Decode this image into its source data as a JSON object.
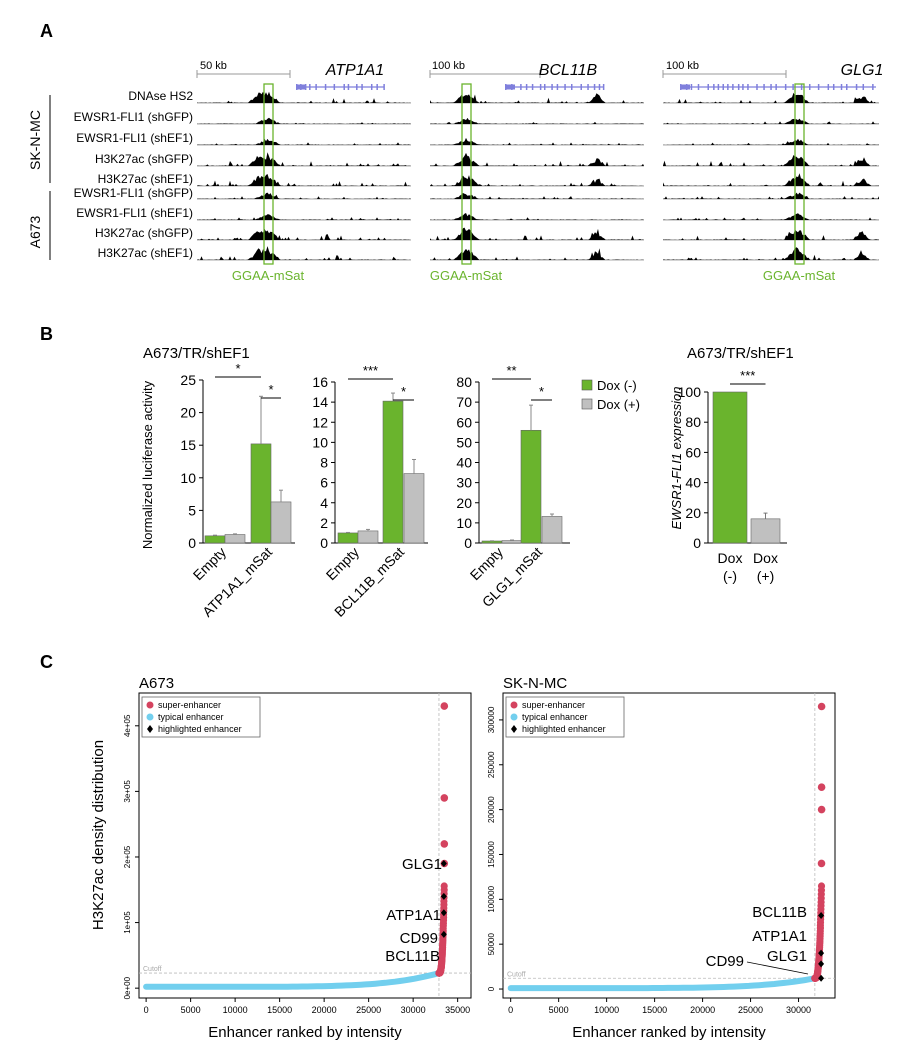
{
  "panel_labels": {
    "a": "A",
    "b": "B",
    "c": "C"
  },
  "colors": {
    "green": "#6ab42d",
    "grey": "#c0c0c0",
    "track": "#000000",
    "gene_blue": "#1f1fa0",
    "gene_model": "#7f7fdc",
    "super": "#d4435f",
    "typical": "#72cfee",
    "highlight": "#000000",
    "cutoff": "#bbbbbb"
  },
  "panelA": {
    "group_labels": [
      "SK-N-MC",
      "A673"
    ],
    "track_labels": [
      "DNAse HS2",
      "EWSR1-FLI1 (shGFP)",
      "EWSR1-FLI1 (shEF1)",
      "H3K27ac (shGFP)",
      "H3K27ac (shEF1)",
      "EWSR1-FLI1 (shGFP)",
      "EWSR1-FLI1 (shEF1)",
      "H3K27ac (shGFP)",
      "H3K27ac (shEF1)"
    ],
    "loci": [
      {
        "gene": "ATP1A1",
        "scale": "50 kb",
        "msat_label": "GGAA-mSat"
      },
      {
        "gene": "BCL11B",
        "scale": "100 kb",
        "msat_label": "GGAA-mSat"
      },
      {
        "gene": "GLG1",
        "scale": "100 kb",
        "msat_label": "GGAA-mSat"
      }
    ]
  },
  "panelB": {
    "left_title": "A673/TR/shEF1",
    "right_title": "A673/TR/shEF1",
    "ylabel": "Normalized luciferase activity",
    "right_ylabel": "EWSR1-FLI1 expression",
    "legend": [
      "Dox (-)",
      "Dox (+)"
    ]
  },
  "panelC": {
    "xlabel_left": "Enhancer ranked by intensity",
    "xlabel_right": "Enhancer ranked by intensity",
    "ylabel": "H3K27ac density distribution",
    "legend": [
      "super-enhancer",
      "typical enhancer",
      "highlighted enhancer"
    ],
    "cutoff_label": "Cutoff"
  },
  "chart_data": [
    {
      "type": "bar",
      "title": "A673/TR/shEF1",
      "ylabel": "Normalized luciferase activity",
      "categories": [
        "Empty",
        "ATP1A1_mSat"
      ],
      "ylim": [
        0,
        25
      ],
      "yticks": [
        0,
        5,
        10,
        15,
        20,
        25
      ],
      "series": [
        {
          "name": "Dox (-)",
          "values": [
            1.1,
            15.2
          ],
          "errors": [
            0.1,
            7.3
          ]
        },
        {
          "name": "Dox (+)",
          "values": [
            1.3,
            6.3
          ],
          "errors": [
            0.1,
            1.8
          ]
        }
      ],
      "significance": [
        {
          "label": "*",
          "span": "outer"
        },
        {
          "label": "*",
          "span": "inner"
        }
      ]
    },
    {
      "type": "bar",
      "title": "",
      "ylabel": "",
      "categories": [
        "Empty",
        "BCL11B_mSat"
      ],
      "ylim": [
        0,
        16
      ],
      "yticks": [
        0,
        2,
        4,
        6,
        8,
        10,
        12,
        14,
        16
      ],
      "series": [
        {
          "name": "Dox (-)",
          "values": [
            1.0,
            14.1
          ],
          "errors": [
            0.05,
            0.8
          ]
        },
        {
          "name": "Dox (+)",
          "values": [
            1.2,
            6.9
          ],
          "errors": [
            0.15,
            1.4
          ]
        }
      ],
      "significance": [
        {
          "label": "***",
          "span": "outer"
        },
        {
          "label": "*",
          "span": "inner"
        }
      ]
    },
    {
      "type": "bar",
      "title": "",
      "ylabel": "",
      "categories": [
        "Empty",
        "GLG1_mSat"
      ],
      "ylim": [
        0,
        80
      ],
      "yticks": [
        0,
        10,
        20,
        30,
        40,
        50,
        60,
        70,
        80
      ],
      "series": [
        {
          "name": "Dox (-)",
          "values": [
            1.0,
            56.0
          ],
          "errors": [
            0.1,
            12.5
          ]
        },
        {
          "name": "Dox (+)",
          "values": [
            1.2,
            13.2
          ],
          "errors": [
            0.3,
            1.2
          ]
        }
      ],
      "significance": [
        {
          "label": "**",
          "span": "outer"
        },
        {
          "label": "*",
          "span": "inner"
        }
      ]
    },
    {
      "type": "bar",
      "title": "A673/TR/shEF1",
      "ylabel": "EWSR1-FLI1 expression",
      "categories": [
        "Dox (-)",
        "Dox (+)"
      ],
      "ylim": [
        0,
        100
      ],
      "yticks": [
        0,
        20,
        40,
        60,
        80,
        100
      ],
      "series": [
        {
          "name": "expression",
          "values": [
            100,
            16
          ],
          "errors": [
            0,
            3.8
          ]
        }
      ],
      "significance": [
        {
          "label": "***",
          "span": "outer"
        }
      ]
    },
    {
      "type": "scatter",
      "title": "A673",
      "xlabel": "Enhancer ranked by intensity",
      "ylabel": "H3K27ac density distribution",
      "xlim": [
        -800,
        36500
      ],
      "ylim": [
        -15000,
        450000
      ],
      "xticks": [
        0,
        5000,
        10000,
        15000,
        20000,
        25000,
        30000,
        35000
      ],
      "yticks": [
        0,
        100000,
        200000,
        300000,
        400000
      ],
      "ytick_labels": [
        "0e+00",
        "1e+05",
        "2e+05",
        "3e+05",
        "4e+05"
      ],
      "n_enhancers": 33500,
      "cutoff_rank": 32900,
      "cutoff_value": 23000,
      "baseline": 2000,
      "top_values": [
        430000,
        290000,
        220000,
        190000
      ],
      "highlighted": [
        {
          "name": "GLG1",
          "value": 190000
        },
        {
          "name": "ATP1A1",
          "value": 140000
        },
        {
          "name": "CD99",
          "value": 115000
        },
        {
          "name": "BCL11B",
          "value": 82000
        }
      ]
    },
    {
      "type": "scatter",
      "title": "SK-N-MC",
      "xlabel": "Enhancer ranked by intensity",
      "ylabel": "",
      "xlim": [
        -800,
        33800
      ],
      "ylim": [
        -10000,
        330000
      ],
      "xticks": [
        0,
        5000,
        10000,
        15000,
        20000,
        25000,
        30000
      ],
      "yticks": [
        0,
        50000,
        100000,
        150000,
        200000,
        250000,
        300000
      ],
      "ytick_labels": [
        "0",
        "50000",
        "100000",
        "150000",
        "200000",
        "250000",
        "300000"
      ],
      "n_enhancers": 32400,
      "cutoff_rank": 31700,
      "cutoff_value": 12000,
      "baseline": 1000,
      "top_values": [
        315000,
        225000,
        200000,
        140000
      ],
      "highlighted": [
        {
          "name": "BCL11B",
          "value": 82000
        },
        {
          "name": "ATP1A1",
          "value": 40000
        },
        {
          "name": "GLG1",
          "value": 28000
        },
        {
          "name": "CD99",
          "value": 12000
        }
      ]
    }
  ]
}
